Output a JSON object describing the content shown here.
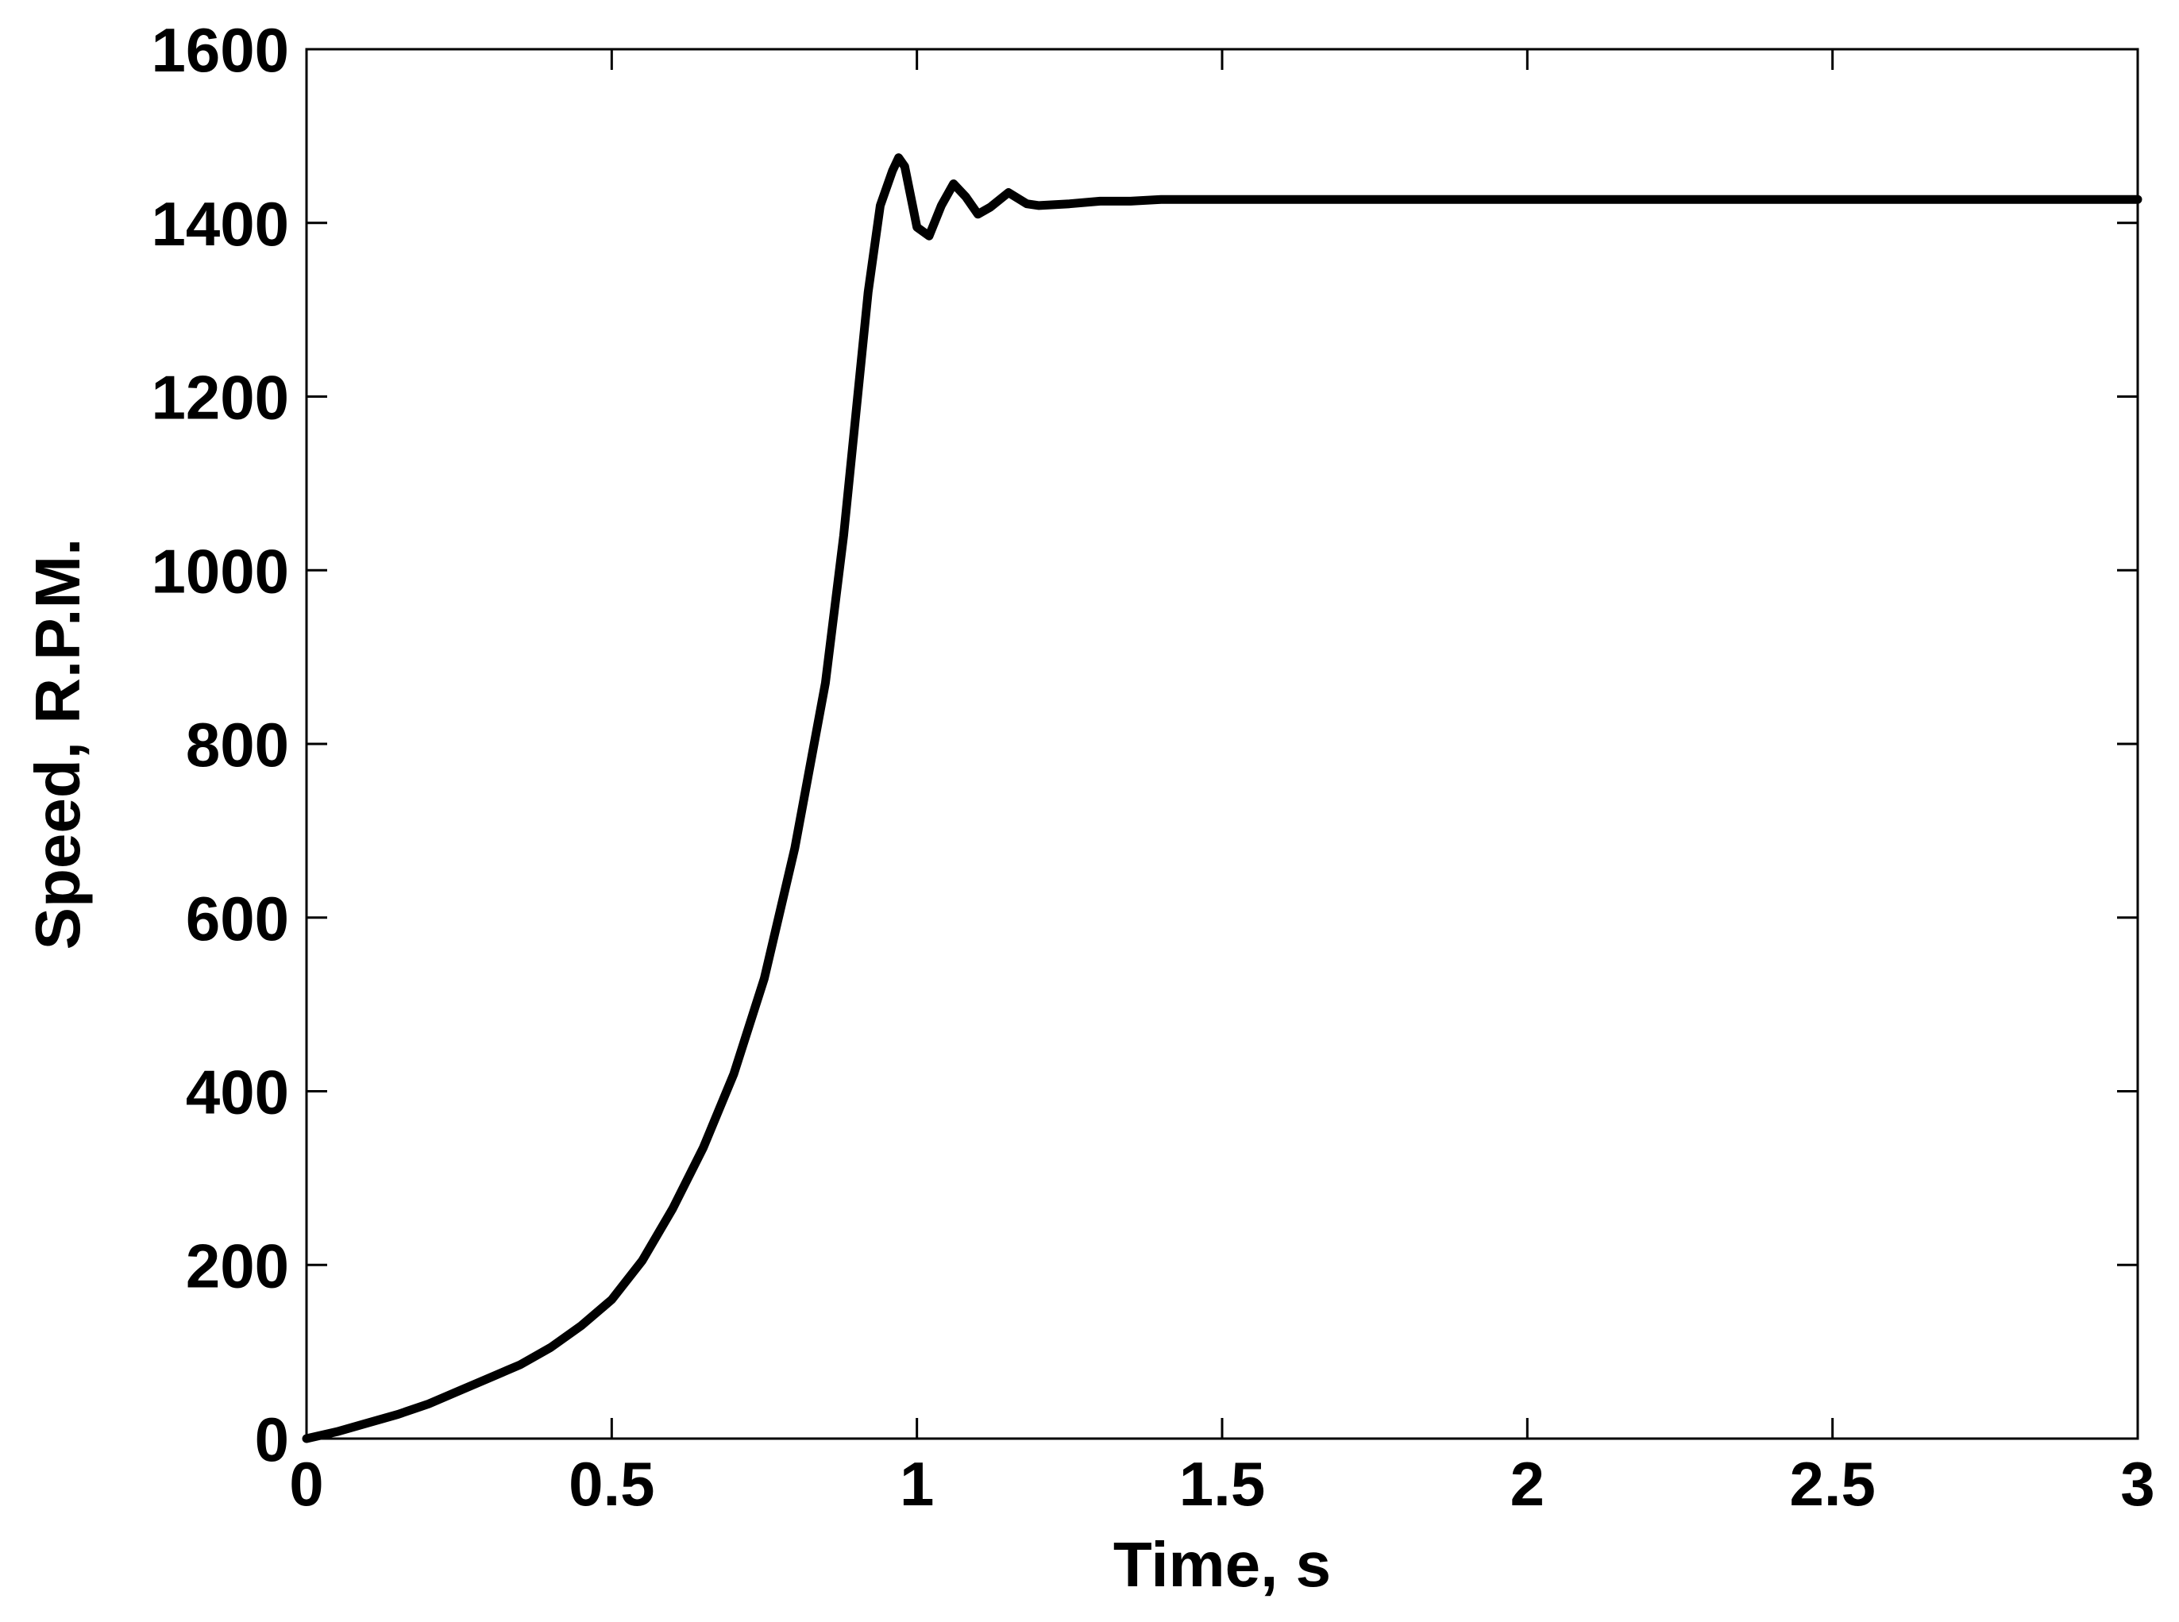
{
  "chart_data": {
    "type": "line",
    "title": "",
    "xlabel": "Time, s",
    "ylabel": "Speed, R.P.M.",
    "xlim": [
      0,
      3
    ],
    "ylim": [
      0,
      1600
    ],
    "x_ticks": [
      "0",
      "0.5",
      "1",
      "1.5",
      "2",
      "2.5",
      "3"
    ],
    "y_ticks": [
      "0",
      "200",
      "400",
      "600",
      "800",
      "1000",
      "1200",
      "1400",
      "1600"
    ],
    "grid": false,
    "legend": "none",
    "line_color": "#000000",
    "series": [
      {
        "x": [
          0,
          0.05,
          0.1,
          0.15,
          0.2,
          0.25,
          0.3,
          0.35,
          0.4,
          0.45,
          0.5,
          0.55,
          0.6,
          0.65,
          0.7,
          0.75,
          0.8,
          0.85,
          0.88,
          0.9,
          0.92,
          0.94,
          0.96,
          0.97,
          0.98,
          0.99,
          1.0,
          1.02,
          1.04,
          1.06,
          1.08,
          1.1,
          1.12,
          1.15,
          1.18,
          1.2,
          1.25,
          1.3,
          1.35,
          1.4,
          1.5,
          1.75,
          2.0,
          2.25,
          2.5,
          2.75,
          3.0
        ],
        "y": [
          0,
          8,
          18,
          28,
          40,
          55,
          70,
          85,
          105,
          130,
          160,
          205,
          265,
          335,
          420,
          530,
          680,
          870,
          1040,
          1180,
          1320,
          1420,
          1460,
          1475,
          1465,
          1430,
          1395,
          1385,
          1420,
          1445,
          1430,
          1410,
          1418,
          1435,
          1422,
          1420,
          1422,
          1425,
          1425,
          1427,
          1427,
          1427,
          1427,
          1427,
          1427,
          1427,
          1427
        ]
      }
    ]
  }
}
